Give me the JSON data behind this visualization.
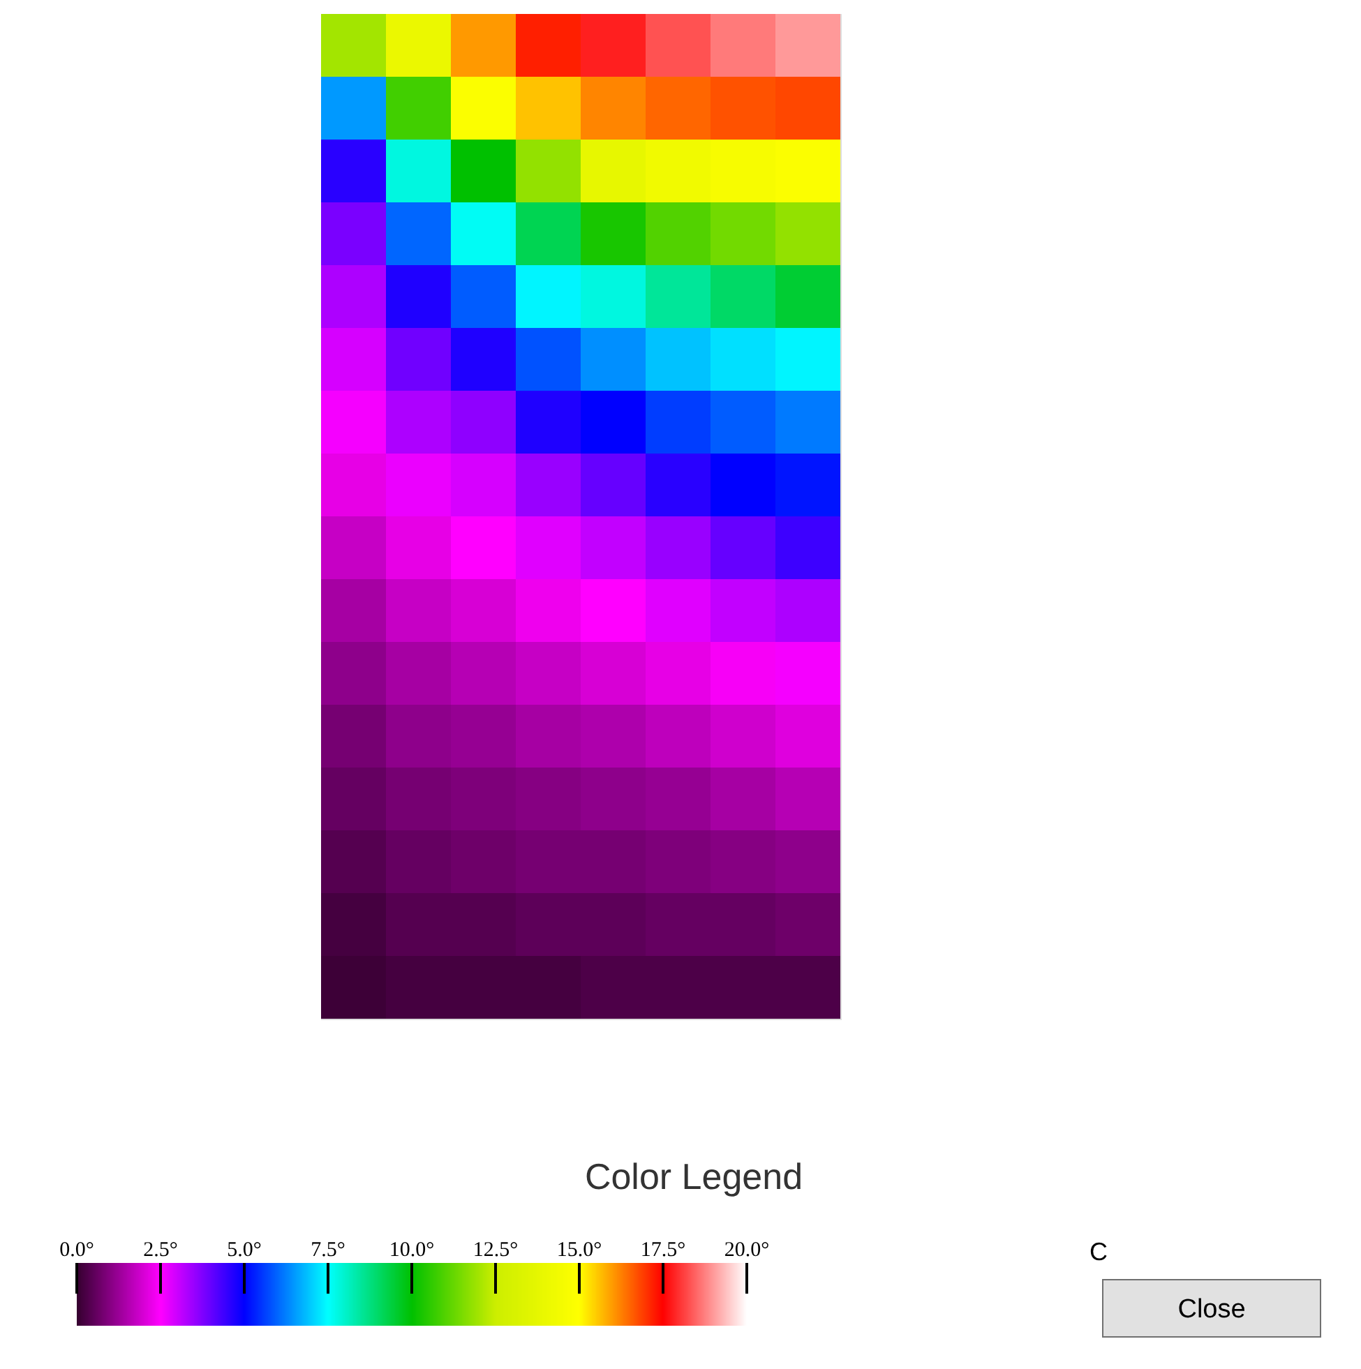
{
  "chart_data": {
    "type": "heatmap",
    "categories": [
      null,
      null,
      null,
      null,
      null,
      null,
      null,
      null
    ],
    "y_categories": [
      null,
      null,
      null,
      null,
      null,
      null,
      null,
      null,
      null,
      null,
      null,
      null,
      null,
      null,
      null,
      null
    ],
    "cells": [
      [
        12,
        14,
        16,
        17.2,
        17.8,
        18.3,
        18.7,
        19
      ],
      [
        6.5,
        10.8,
        14.8,
        15.6,
        16.2,
        16.5,
        16.7,
        16.8
      ],
      [
        4.6,
        7.8,
        10,
        11.8,
        13.8,
        14.3,
        14.6,
        14.8
      ],
      [
        3.8,
        6,
        7.6,
        9.2,
        10.3,
        11,
        11.4,
        11.8
      ],
      [
        3.3,
        4.7,
        5.9,
        7.4,
        7.8,
        8.5,
        9,
        9.5
      ],
      [
        2.9,
        3.9,
        4.7,
        5.8,
        6.4,
        6.9,
        7.2,
        7.4
      ],
      [
        2.6,
        3.3,
        3.6,
        4.7,
        5,
        5.6,
        5.9,
        6.2
      ],
      [
        2.2,
        2.7,
        2.9,
        3.5,
        4,
        4.6,
        5,
        5.2
      ],
      [
        1.8,
        2.2,
        2.5,
        2.8,
        3.1,
        3.5,
        4,
        4.4
      ],
      [
        1.4,
        1.8,
        2,
        2.3,
        2.5,
        2.8,
        3.1,
        3.3
      ],
      [
        1.1,
        1.4,
        1.6,
        1.8,
        2,
        2.2,
        2.4,
        2.6
      ],
      [
        0.8,
        1.1,
        1.2,
        1.4,
        1.5,
        1.7,
        1.9,
        2.1
      ],
      [
        0.6,
        0.8,
        0.9,
        1,
        1.1,
        1.2,
        1.4,
        1.6
      ],
      [
        0.4,
        0.6,
        0.7,
        0.8,
        0.8,
        0.9,
        1,
        1.1
      ],
      [
        0.2,
        0.4,
        0.4,
        0.5,
        0.5,
        0.6,
        0.6,
        0.7
      ],
      [
        0.1,
        0.2,
        0.2,
        0.2,
        0.3,
        0.3,
        0.3,
        0.3
      ]
    ],
    "clim": [
      0,
      20
    ],
    "cticks": [
      {
        "value": 0,
        "label": "0.0°"
      },
      {
        "value": 2.5,
        "label": "2.5°"
      },
      {
        "value": 5,
        "label": "5.0°"
      },
      {
        "value": 7.5,
        "label": "7.5°"
      },
      {
        "value": 10,
        "label": "10.0°"
      },
      {
        "value": 12.5,
        "label": "12.5°"
      },
      {
        "value": 15,
        "label": "15.0°"
      },
      {
        "value": 17.5,
        "label": "17.5°"
      },
      {
        "value": 20,
        "label": "20.0°"
      }
    ],
    "legend_title": "Color Legend",
    "clabel": "C",
    "annotations": [
      "Close"
    ],
    "tick_labels": false
  }
}
